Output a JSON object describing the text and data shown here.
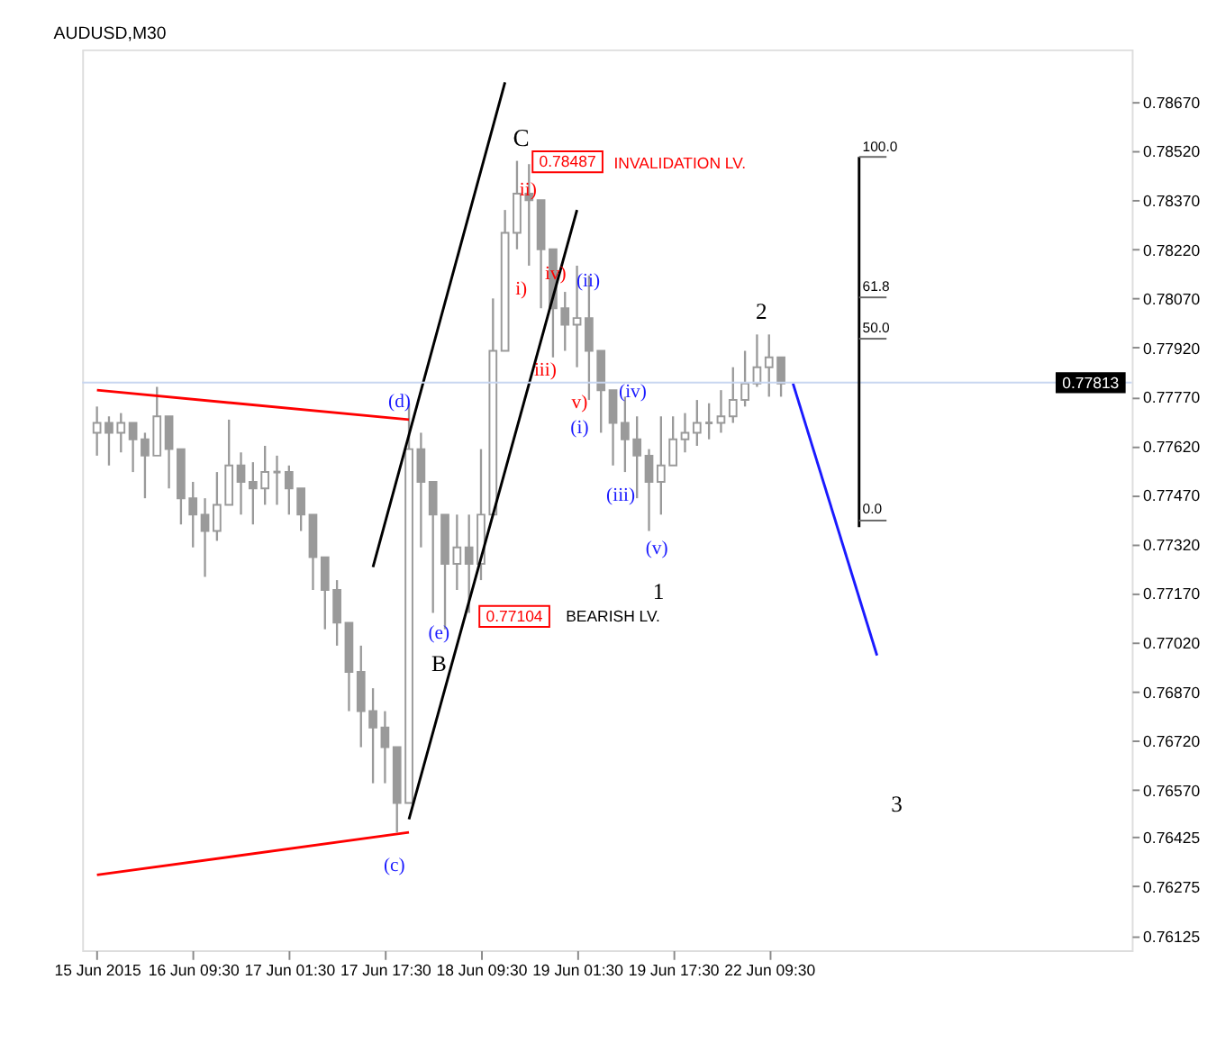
{
  "chart_data": {
    "type": "candlestick",
    "title": "AUDUSD,M30",
    "color": "#9a9a9a",
    "categories": [
      "15 Jun 2015",
      null,
      null,
      null,
      null,
      null,
      null,
      null,
      "16 Jun 09:30",
      null,
      null,
      null,
      null,
      null,
      null,
      null,
      "17 Jun 01:30",
      null,
      null,
      null,
      null,
      null,
      null,
      null,
      "17 Jun 17:30",
      null,
      null,
      null,
      null,
      null,
      null,
      null,
      "18 Jun 09:30",
      null,
      null,
      null,
      null,
      null,
      null,
      null,
      "19 Jun 01:30",
      null,
      null,
      null,
      null,
      null,
      null,
      null,
      "19 Jun 17:30",
      null,
      null,
      null,
      null,
      null,
      null,
      null,
      "22 Jun 09:30",
      null,
      null,
      null,
      null,
      null,
      null,
      null,
      null,
      null,
      null,
      null,
      null,
      null,
      null,
      null,
      null,
      null,
      null,
      null,
      null,
      null,
      null,
      null,
      null,
      null,
      null,
      null,
      null,
      null
    ],
    "ohlc": [
      [
        0.7766,
        0.7774,
        0.7759,
        0.7769
      ],
      [
        0.7769,
        0.7771,
        0.7756,
        0.7766
      ],
      [
        0.7766,
        0.7772,
        0.776,
        0.7769
      ],
      [
        0.7769,
        0.7769,
        0.7754,
        0.7764
      ],
      [
        0.7764,
        0.7766,
        0.7746,
        0.7759
      ],
      [
        0.7759,
        0.778,
        0.7759,
        0.7771
      ],
      [
        0.7771,
        0.7771,
        0.7749,
        0.7761
      ],
      [
        0.7761,
        0.7761,
        0.7738,
        0.7746
      ],
      [
        0.7746,
        0.7751,
        0.7731,
        0.7741
      ],
      [
        0.7741,
        0.7746,
        0.7722,
        0.7736
      ],
      [
        0.7736,
        0.7754,
        0.7733,
        0.7744
      ],
      [
        0.7744,
        0.777,
        0.7744,
        0.7756
      ],
      [
        0.7756,
        0.776,
        0.7741,
        0.7751
      ],
      [
        0.7751,
        0.7757,
        0.7738,
        0.7749
      ],
      [
        0.7749,
        0.7762,
        0.7744,
        0.7754
      ],
      [
        0.7754,
        0.7759,
        0.7744,
        0.7754
      ],
      [
        0.7754,
        0.7756,
        0.7741,
        0.7749
      ],
      [
        0.7749,
        0.7749,
        0.7736,
        0.7741
      ],
      [
        0.7741,
        0.7741,
        0.7718,
        0.7728
      ],
      [
        0.7728,
        0.7728,
        0.7706,
        0.7718
      ],
      [
        0.7718,
        0.7721,
        0.7701,
        0.7708
      ],
      [
        0.7708,
        0.7708,
        0.7681,
        0.7693
      ],
      [
        0.7693,
        0.7701,
        0.767,
        0.7681
      ],
      [
        0.7681,
        0.7688,
        0.7659,
        0.7676
      ],
      [
        0.7676,
        0.7681,
        0.7659,
        0.767
      ],
      [
        0.767,
        0.767,
        0.7644,
        0.7653
      ],
      [
        0.7653,
        0.7775,
        0.7653,
        0.7761
      ],
      [
        0.7761,
        0.7766,
        0.7731,
        0.7751
      ],
      [
        0.7751,
        0.7751,
        0.7711,
        0.7741
      ],
      [
        0.7741,
        0.7741,
        0.7706,
        0.7726
      ],
      [
        0.7726,
        0.7741,
        0.7718,
        0.7731
      ],
      [
        0.7731,
        0.7741,
        0.7711,
        0.7726
      ],
      [
        0.7726,
        0.7761,
        0.7721,
        0.7741
      ],
      [
        0.7741,
        0.7807,
        0.7741,
        0.7791
      ],
      [
        0.7791,
        0.7834,
        0.7791,
        0.7827
      ],
      [
        0.7827,
        0.7849,
        0.7822,
        0.7839
      ],
      [
        0.7839,
        0.7848,
        0.7817,
        0.7837
      ],
      [
        0.7837,
        0.7837,
        0.7804,
        0.7822
      ],
      [
        0.7822,
        0.7822,
        0.7789,
        0.7804
      ],
      [
        0.7804,
        0.7809,
        0.7791,
        0.7799
      ],
      [
        0.7799,
        0.7817,
        0.7786,
        0.7801
      ],
      [
        0.7801,
        0.7814,
        0.7776,
        0.7791
      ],
      [
        0.7791,
        0.7791,
        0.7766,
        0.7779
      ],
      [
        0.7779,
        0.7779,
        0.7756,
        0.7769
      ],
      [
        0.7769,
        0.7777,
        0.7754,
        0.7764
      ],
      [
        0.7764,
        0.7771,
        0.7746,
        0.7759
      ],
      [
        0.7759,
        0.7761,
        0.7736,
        0.7751
      ],
      [
        0.7751,
        0.7771,
        0.7741,
        0.7756
      ],
      [
        0.7756,
        0.7771,
        0.7756,
        0.7764
      ],
      [
        0.7764,
        0.7772,
        0.776,
        0.7766
      ],
      [
        0.7766,
        0.7776,
        0.7762,
        0.7769
      ],
      [
        0.7769,
        0.7775,
        0.7764,
        0.7769
      ],
      [
        0.7769,
        0.7779,
        0.7766,
        0.7771
      ],
      [
        0.7771,
        0.7786,
        0.7769,
        0.7776
      ],
      [
        0.7776,
        0.7791,
        0.7774,
        0.7781
      ],
      [
        0.7781,
        0.7796,
        0.778,
        0.7786
      ],
      [
        0.7786,
        0.7796,
        0.7777,
        0.7789
      ],
      [
        0.7789,
        0.7789,
        0.7777,
        0.7781
      ],
      null,
      null,
      null,
      null,
      null,
      null,
      null,
      null,
      null,
      null,
      null,
      null,
      null,
      null,
      null,
      null,
      null,
      null,
      null,
      null,
      null,
      null,
      null,
      null,
      null,
      null,
      null,
      null
    ],
    "series": [
      {
        "type": "line",
        "color": "#ff0000",
        "values": [
          0.7779,
          null,
          null,
          null,
          null,
          null,
          null,
          null,
          null,
          null,
          null,
          null,
          null,
          null,
          null,
          null,
          null,
          null,
          null,
          null,
          null,
          null,
          null,
          null,
          null,
          null,
          0.777,
          null,
          null,
          null,
          null,
          null,
          null,
          null,
          null,
          null,
          null,
          null,
          null,
          null,
          null,
          null,
          null,
          null,
          null,
          null,
          null,
          null,
          null,
          null,
          null,
          null,
          null,
          null,
          null,
          null,
          null,
          null,
          null,
          null,
          null,
          null,
          null,
          null,
          null,
          null,
          null,
          null,
          null,
          null,
          null,
          null,
          null,
          null,
          null,
          null,
          null,
          null,
          null,
          null,
          null,
          null,
          null,
          null,
          null,
          null
        ]
      },
      {
        "type": "line",
        "color": "#ff0000",
        "values": [
          0.7631,
          null,
          null,
          null,
          null,
          null,
          null,
          null,
          null,
          null,
          null,
          null,
          null,
          null,
          null,
          null,
          null,
          null,
          null,
          null,
          null,
          null,
          null,
          null,
          null,
          null,
          0.7644,
          null,
          null,
          null,
          null,
          null,
          null,
          null,
          null,
          null,
          null,
          null,
          null,
          null,
          null,
          null,
          null,
          null,
          null,
          null,
          null,
          null,
          null,
          null,
          null,
          null,
          null,
          null,
          null,
          null,
          null,
          null,
          null,
          null,
          null,
          null,
          null,
          null,
          null,
          null,
          null,
          null,
          null,
          null,
          null,
          null,
          null,
          null,
          null,
          null,
          null,
          null,
          null,
          null,
          null,
          null,
          null,
          null,
          null,
          null
        ]
      },
      {
        "type": "line",
        "color": "#000000",
        "values": [
          null,
          null,
          null,
          null,
          null,
          null,
          null,
          null,
          null,
          null,
          null,
          null,
          null,
          null,
          null,
          null,
          null,
          null,
          null,
          null,
          null,
          null,
          null,
          0.7725,
          null,
          null,
          null,
          null,
          null,
          null,
          null,
          null,
          null,
          null,
          0.7873,
          null,
          null,
          null,
          null,
          null,
          null,
          null,
          null,
          null,
          null,
          null,
          null,
          null,
          null,
          null,
          null,
          null,
          null,
          null,
          null,
          null,
          null,
          null,
          null,
          null,
          null,
          null,
          null,
          null,
          null,
          null,
          null,
          null,
          null,
          null,
          null,
          null,
          null,
          null,
          null,
          null,
          null,
          null,
          null,
          null,
          null,
          null,
          null,
          null,
          null,
          null
        ]
      },
      {
        "type": "line",
        "color": "#000000",
        "values": [
          null,
          null,
          null,
          null,
          null,
          null,
          null,
          null,
          null,
          null,
          null,
          null,
          null,
          null,
          null,
          null,
          null,
          null,
          null,
          null,
          null,
          null,
          null,
          null,
          null,
          null,
          0.7648,
          null,
          null,
          null,
          null,
          null,
          null,
          null,
          null,
          null,
          null,
          null,
          null,
          null,
          0.7834,
          null,
          null,
          null,
          null,
          null,
          null,
          null,
          null,
          null,
          null,
          null,
          null,
          null,
          null,
          null,
          null,
          null,
          null,
          null,
          null,
          null,
          null,
          null,
          null,
          null,
          null,
          null,
          null,
          null,
          null,
          null,
          null,
          null,
          null,
          null,
          null,
          null,
          null,
          null,
          null,
          null,
          null,
          null,
          null,
          null
        ]
      },
      {
        "type": "line",
        "color": "#1a1aff",
        "values": [
          null,
          null,
          null,
          null,
          null,
          null,
          null,
          null,
          null,
          null,
          null,
          null,
          null,
          null,
          null,
          null,
          null,
          null,
          null,
          null,
          null,
          null,
          null,
          null,
          null,
          null,
          null,
          null,
          null,
          null,
          null,
          null,
          null,
          null,
          null,
          null,
          null,
          null,
          null,
          null,
          null,
          null,
          null,
          null,
          null,
          null,
          null,
          null,
          null,
          null,
          null,
          null,
          null,
          null,
          null,
          null,
          null,
          null,
          0.7781,
          null,
          null,
          null,
          null,
          null,
          null,
          0.7698,
          null,
          null,
          null,
          null,
          null,
          null,
          null,
          null,
          null,
          null,
          null,
          null,
          null,
          null,
          null,
          null,
          null,
          null,
          null,
          null
        ]
      }
    ],
    "ylim": [
      0.7608,
      0.7883
    ],
    "yticks": [
      0.76125,
      0.76275,
      0.76425,
      {
        "value": 0.7657,
        "label": "0.76570"
      },
      {
        "value": 0.7672,
        "label": "0.76720"
      },
      {
        "value": 0.7687,
        "label": "0.76870"
      },
      {
        "value": 0.7702,
        "label": "0.77020"
      },
      {
        "value": 0.7717,
        "label": "0.77170"
      },
      {
        "value": 0.7732,
        "label": "0.77320"
      },
      {
        "value": 0.7747,
        "label": "0.77470"
      },
      {
        "value": 0.7762,
        "label": "0.77620"
      },
      {
        "value": 0.7777,
        "label": "0.77770"
      },
      {
        "value": 0.7792,
        "label": "0.77920"
      },
      {
        "value": 0.7807,
        "label": "0.78070"
      },
      {
        "value": 0.7822,
        "label": "0.78220"
      },
      {
        "value": 0.7837,
        "label": "0.78370"
      },
      {
        "value": 0.7852,
        "label": "0.78520"
      },
      {
        "value": 0.7867,
        "label": "0.78670"
      }
    ],
    "ref_lines": [
      {
        "axis": "y",
        "value": 0.77813,
        "label": "0.77813",
        "color": "#c8d6f0"
      }
    ],
    "annotations": [
      "C",
      "ii)",
      "i)",
      "iv)",
      "(ii)",
      "iii)",
      "v)",
      "(i)",
      "(iv)",
      "(iii)",
      "(v)",
      "1",
      "2",
      "3",
      "(d)",
      "(e)",
      "B",
      "(c)",
      {
        "text": "0.78487",
        "y": 0.78487
      },
      "INVALIDATION LV.",
      "0.77104",
      "BEARISH LV.",
      "100.0",
      "61.8",
      "50.0",
      "0.0"
    ],
    "grid": false
  }
}
